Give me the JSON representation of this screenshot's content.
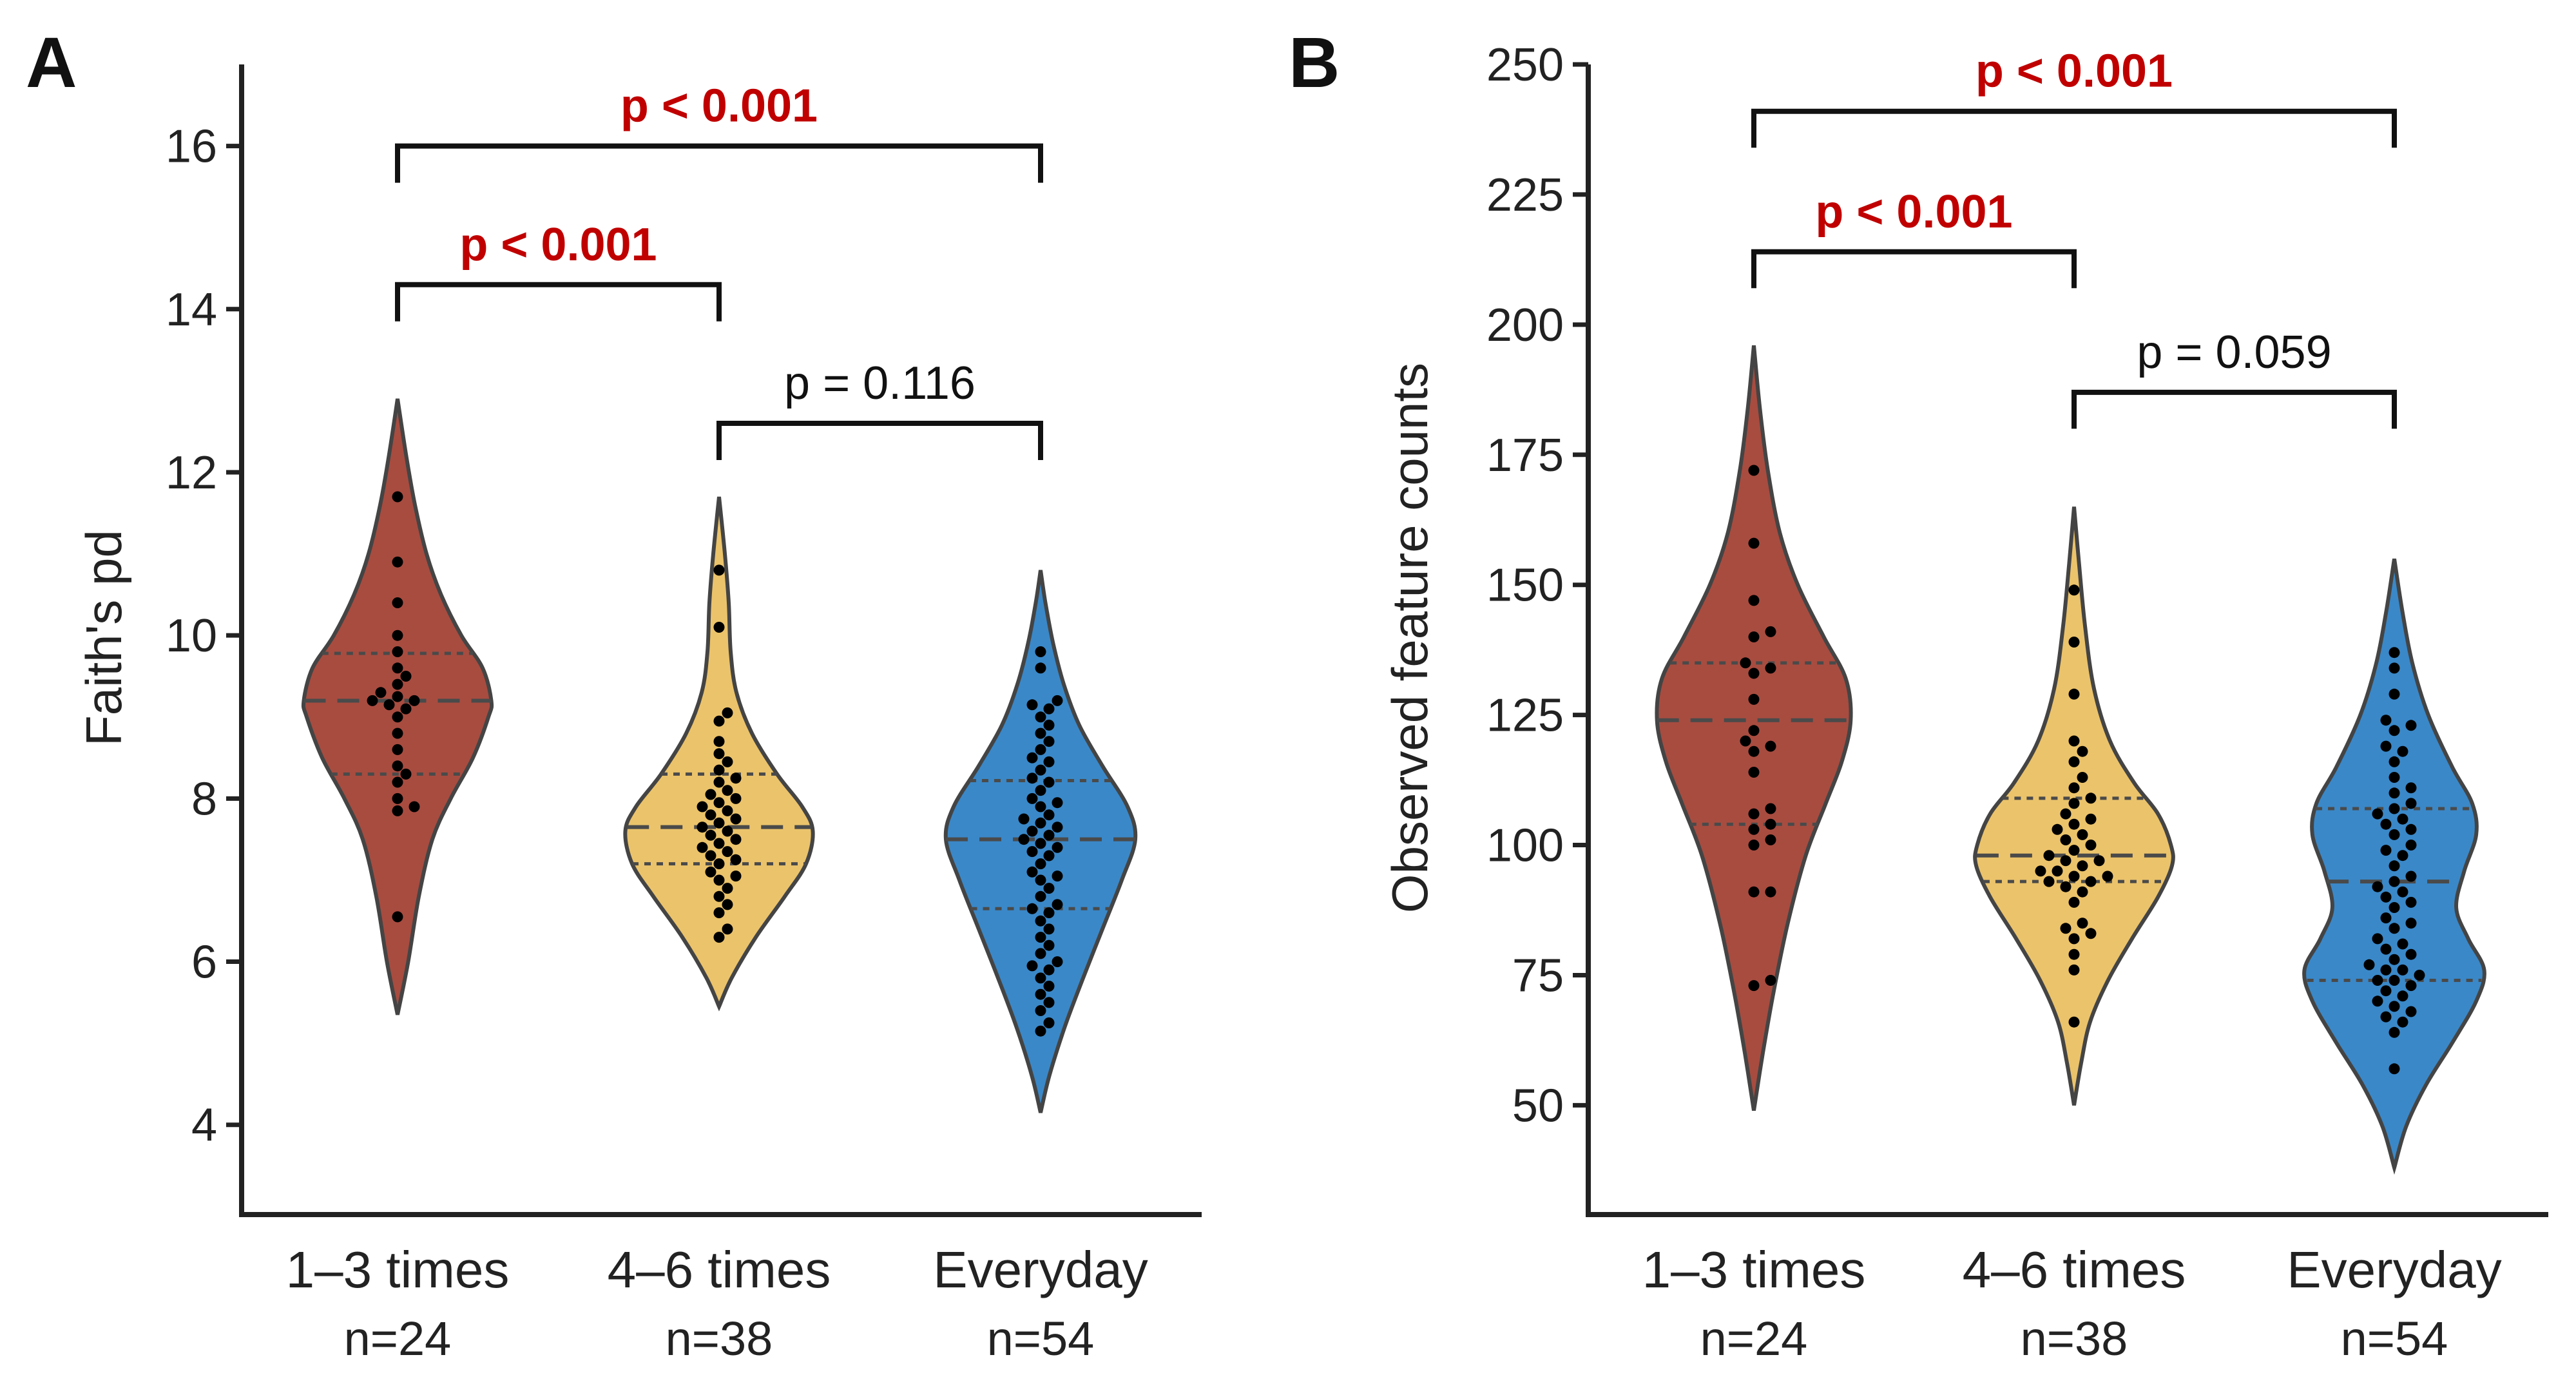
{
  "colors": {
    "g1": "#a84c40",
    "g2": "#ebc36b",
    "g3": "#3a88c8",
    "significant": "#c00000",
    "ns": "#111111"
  },
  "chart_data": [
    {
      "panel": "A",
      "type": "violin",
      "ylabel": "Faith's pd",
      "xlabel": "",
      "ylim": [
        2.9,
        17.0
      ],
      "yticks": [
        4,
        6,
        8,
        10,
        12,
        14,
        16
      ],
      "categories": [
        "1–3 times",
        "4–6 times",
        "Everyday"
      ],
      "n_labels": [
        "n=24",
        "n=38",
        "n=54"
      ],
      "groups": [
        {
          "name": "1–3 times",
          "n": 24,
          "color": "#a84c40",
          "min": 5.35,
          "max": 12.9,
          "profile": [
            [
              5.35,
              0.0
            ],
            [
              6.0,
              0.11
            ],
            [
              6.8,
              0.22
            ],
            [
              7.5,
              0.36
            ],
            [
              8.0,
              0.55
            ],
            [
              8.5,
              0.78
            ],
            [
              9.0,
              0.94
            ],
            [
              9.2,
              0.97
            ],
            [
              9.6,
              0.88
            ],
            [
              10.0,
              0.66
            ],
            [
              10.5,
              0.45
            ],
            [
              11.0,
              0.3
            ],
            [
              11.6,
              0.18
            ],
            [
              12.2,
              0.09
            ],
            [
              12.9,
              0.0
            ]
          ],
          "median": 9.2,
          "q1": 8.3,
          "q3": 9.78,
          "points": [
            11.7,
            10.9,
            10.4,
            10.0,
            9.8,
            9.6,
            9.5,
            9.4,
            9.3,
            9.25,
            9.2,
            9.2,
            9.15,
            9.1,
            9.0,
            8.8,
            8.6,
            8.4,
            8.3,
            8.2,
            8.0,
            7.9,
            7.85,
            6.55
          ]
        },
        {
          "name": "4–6 times",
          "n": 38,
          "color": "#ebc36b",
          "min": 5.45,
          "max": 11.7,
          "profile": [
            [
              5.45,
              0.0
            ],
            [
              5.8,
              0.13
            ],
            [
              6.3,
              0.38
            ],
            [
              6.8,
              0.68
            ],
            [
              7.2,
              0.9
            ],
            [
              7.6,
              0.97
            ],
            [
              7.9,
              0.86
            ],
            [
              8.3,
              0.6
            ],
            [
              8.8,
              0.34
            ],
            [
              9.3,
              0.18
            ],
            [
              9.8,
              0.12
            ],
            [
              10.4,
              0.1
            ],
            [
              11.0,
              0.06
            ],
            [
              11.7,
              0.0
            ]
          ],
          "median": 7.65,
          "q1": 7.2,
          "q3": 8.3,
          "points": [
            10.8,
            10.1,
            9.05,
            8.95,
            8.7,
            8.55,
            8.45,
            8.35,
            8.25,
            8.2,
            8.1,
            8.05,
            8.0,
            7.95,
            7.9,
            7.85,
            7.8,
            7.75,
            7.7,
            7.65,
            7.6,
            7.55,
            7.5,
            7.45,
            7.4,
            7.35,
            7.3,
            7.25,
            7.2,
            7.1,
            7.05,
            7.0,
            6.9,
            6.8,
            6.7,
            6.6,
            6.4,
            6.3
          ]
        },
        {
          "name": "Everyday",
          "n": 54,
          "color": "#3a88c8",
          "min": 4.15,
          "max": 10.8,
          "profile": [
            [
              4.15,
              0.0
            ],
            [
              4.6,
              0.09
            ],
            [
              5.2,
              0.25
            ],
            [
              5.8,
              0.44
            ],
            [
              6.4,
              0.64
            ],
            [
              7.0,
              0.84
            ],
            [
              7.5,
              0.98
            ],
            [
              7.9,
              0.9
            ],
            [
              8.4,
              0.64
            ],
            [
              8.9,
              0.4
            ],
            [
              9.4,
              0.24
            ],
            [
              9.9,
              0.13
            ],
            [
              10.4,
              0.05
            ],
            [
              10.8,
              0.0
            ]
          ],
          "median": 7.5,
          "q1": 6.65,
          "q3": 8.22,
          "points": [
            9.8,
            9.6,
            9.2,
            9.15,
            9.1,
            9.0,
            8.9,
            8.8,
            8.7,
            8.6,
            8.5,
            8.45,
            8.35,
            8.25,
            8.2,
            8.1,
            8.0,
            7.95,
            7.9,
            7.8,
            7.75,
            7.7,
            7.65,
            7.6,
            7.55,
            7.5,
            7.45,
            7.4,
            7.35,
            7.3,
            7.2,
            7.1,
            7.05,
            7.0,
            6.9,
            6.8,
            6.7,
            6.65,
            6.6,
            6.5,
            6.4,
            6.3,
            6.2,
            6.1,
            6.0,
            5.95,
            5.9,
            5.8,
            5.7,
            5.6,
            5.5,
            5.4,
            5.25,
            5.15
          ]
        }
      ],
      "comparisons": [
        {
          "from": 0,
          "to": 2,
          "label": "p < 0.001",
          "y": 16.0,
          "drop": 0.45,
          "significant": true
        },
        {
          "from": 0,
          "to": 1,
          "label": "p < 0.001",
          "y": 14.3,
          "drop": 0.45,
          "significant": true
        },
        {
          "from": 1,
          "to": 2,
          "label": "p = 0.116",
          "y": 12.6,
          "drop": 0.45,
          "significant": false
        }
      ]
    },
    {
      "panel": "B",
      "type": "violin",
      "ylabel": "Observed feature counts",
      "xlabel": "",
      "ylim": [
        29,
        250
      ],
      "yticks": [
        50,
        75,
        100,
        125,
        150,
        175,
        200,
        225,
        250
      ],
      "categories": [
        "1–3 times",
        "4–6 times",
        "Everyday"
      ],
      "n_labels": [
        "n=24",
        "n=38",
        "n=54"
      ],
      "groups": [
        {
          "name": "1–3 times",
          "n": 24,
          "color": "#a84c40",
          "min": 49,
          "max": 196,
          "profile": [
            [
              49,
              0.0
            ],
            [
              60,
              0.09
            ],
            [
              72,
              0.2
            ],
            [
              85,
              0.34
            ],
            [
              98,
              0.52
            ],
            [
              108,
              0.72
            ],
            [
              116,
              0.88
            ],
            [
              124,
              0.97
            ],
            [
              132,
              0.92
            ],
            [
              140,
              0.7
            ],
            [
              150,
              0.44
            ],
            [
              160,
              0.26
            ],
            [
              172,
              0.14
            ],
            [
              184,
              0.06
            ],
            [
              196,
              0.0
            ]
          ],
          "median": 124,
          "q1": 104,
          "q3": 135,
          "points": [
            172,
            158,
            147,
            141,
            140,
            135,
            134,
            133,
            128,
            122,
            120,
            119,
            118,
            114,
            107,
            106,
            104,
            103,
            101,
            100,
            91,
            91,
            74,
            73
          ]
        },
        {
          "name": "4–6 times",
          "n": 38,
          "color": "#ebc36b",
          "min": 50,
          "max": 165,
          "profile": [
            [
              50,
              0.0
            ],
            [
              58,
              0.07
            ],
            [
              66,
              0.16
            ],
            [
              74,
              0.34
            ],
            [
              82,
              0.58
            ],
            [
              90,
              0.84
            ],
            [
              96,
              0.98
            ],
            [
              100,
              0.97
            ],
            [
              106,
              0.84
            ],
            [
              112,
              0.6
            ],
            [
              120,
              0.36
            ],
            [
              130,
              0.2
            ],
            [
              142,
              0.11
            ],
            [
              154,
              0.05
            ],
            [
              165,
              0.0
            ]
          ],
          "median": 98,
          "q1": 93,
          "q3": 109,
          "points": [
            149,
            139,
            129,
            120,
            118,
            116,
            113,
            111,
            109,
            108,
            106,
            105,
            104,
            103,
            102,
            101,
            100,
            99,
            98,
            97,
            97,
            96,
            95,
            95,
            94,
            94,
            93,
            93,
            92,
            91,
            89,
            85,
            84,
            83,
            82,
            79,
            76,
            66
          ]
        },
        {
          "name": "Everyday",
          "n": 54,
          "color": "#3a88c8",
          "min": 38,
          "max": 155,
          "profile": [
            [
              38,
              0.0
            ],
            [
              46,
              0.12
            ],
            [
              54,
              0.32
            ],
            [
              62,
              0.58
            ],
            [
              70,
              0.82
            ],
            [
              76,
              0.9
            ],
            [
              82,
              0.74
            ],
            [
              88,
              0.62
            ],
            [
              95,
              0.7
            ],
            [
              102,
              0.82
            ],
            [
              108,
              0.78
            ],
            [
              115,
              0.58
            ],
            [
              125,
              0.34
            ],
            [
              135,
              0.18
            ],
            [
              145,
              0.08
            ],
            [
              155,
              0.0
            ]
          ],
          "median": 93,
          "q1": 74,
          "q3": 107,
          "points": [
            137,
            134,
            129,
            124,
            123,
            122,
            119,
            118,
            116,
            113,
            111,
            110,
            108,
            107,
            106,
            105,
            104,
            103,
            102,
            100,
            99,
            98,
            96,
            94,
            93,
            92,
            91,
            90,
            89,
            88,
            86,
            85,
            84,
            82,
            81,
            80,
            79,
            78,
            77,
            76,
            76,
            75,
            74,
            74,
            73,
            72,
            71,
            70,
            69,
            68,
            67,
            66,
            64,
            57
          ]
        }
      ],
      "comparisons": [
        {
          "from": 0,
          "to": 2,
          "label": "p < 0.001",
          "y": 241,
          "drop": 7,
          "significant": true
        },
        {
          "from": 0,
          "to": 1,
          "label": "p < 0.001",
          "y": 214,
          "drop": 7,
          "significant": true
        },
        {
          "from": 1,
          "to": 2,
          "label": "p = 0.059",
          "y": 187,
          "drop": 7,
          "significant": false
        }
      ]
    }
  ]
}
